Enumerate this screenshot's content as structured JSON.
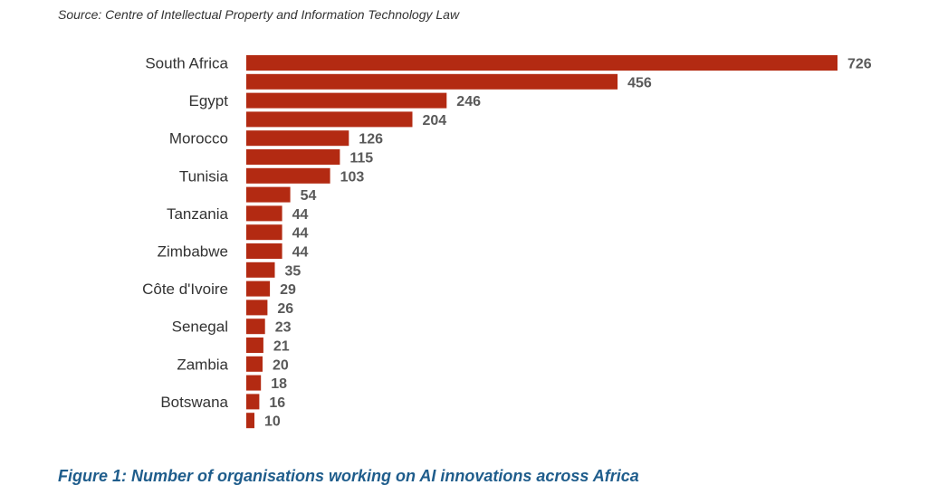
{
  "source": "Source: Centre of Intellectual Property and Information Technology Law",
  "caption": "Figure 1: Number of organisations working on AI innovations across Africa",
  "colors": {
    "bar": "#B32A12",
    "caption": "#1F5D8C",
    "value_label": "#595959",
    "category_label": "#333333"
  },
  "chart_data": {
    "type": "bar",
    "orientation": "horizontal",
    "categories": [
      "South Africa",
      "",
      "Egypt",
      "",
      "Morocco",
      "",
      "Tunisia",
      "",
      "Tanzania",
      "",
      "Zimbabwe",
      "",
      "Côte d'Ivoire",
      "",
      "Senegal",
      "",
      "Zambia",
      "",
      "Botswana",
      ""
    ],
    "values": [
      726,
      456,
      246,
      204,
      126,
      115,
      103,
      54,
      44,
      44,
      44,
      35,
      29,
      26,
      23,
      21,
      20,
      18,
      16,
      10
    ],
    "title": "",
    "xlabel": "",
    "ylabel": "",
    "xlim": [
      0,
      726
    ],
    "grid": false,
    "legend": "none"
  }
}
